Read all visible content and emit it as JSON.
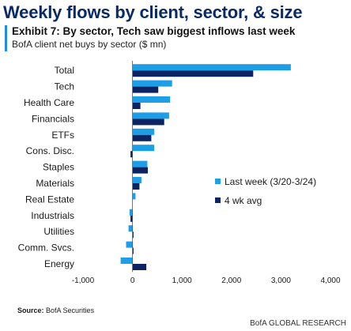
{
  "header": {
    "headline": "Weekly flows by client, sector, & size",
    "exhibit_title": "Exhibit 7: By sector, Tech saw biggest inflows last week",
    "exhibit_subtitle": "BofA client net buys by sector ($ mn)"
  },
  "source": {
    "label": "Source:",
    "text": "BofA Securities"
  },
  "footer": {
    "text": "BofA GLOBAL RESEARCH"
  },
  "colors": {
    "last_week": "#1f9ee8",
    "four_wk_avg": "#0c2461"
  },
  "chart_data": {
    "type": "bar",
    "orientation": "horizontal",
    "categories": [
      "Total",
      "Tech",
      "Health Care",
      "Financials",
      "ETFs",
      "Cons. Disc.",
      "Staples",
      "Materials",
      "Real Estate",
      "Industrials",
      "Utilities",
      "Comm. Svcs.",
      "Energy"
    ],
    "series": [
      {
        "name": "Last week (3/20-3/24)",
        "values": [
          3200,
          800,
          760,
          740,
          440,
          440,
          300,
          180,
          60,
          -60,
          -80,
          -130,
          -240
        ]
      },
      {
        "name": "4 wk avg",
        "values": [
          2440,
          520,
          160,
          640,
          380,
          -40,
          310,
          140,
          0,
          -40,
          20,
          20,
          280
        ]
      }
    ],
    "xlim": [
      -1000,
      4000
    ],
    "xticks": [
      -1000,
      0,
      1000,
      2000,
      3000,
      4000
    ],
    "xtick_labels": [
      "-1,000",
      "0",
      "1,000",
      "2,000",
      "3,000",
      "4,000"
    ],
    "legend_position": "right",
    "grid": false
  }
}
